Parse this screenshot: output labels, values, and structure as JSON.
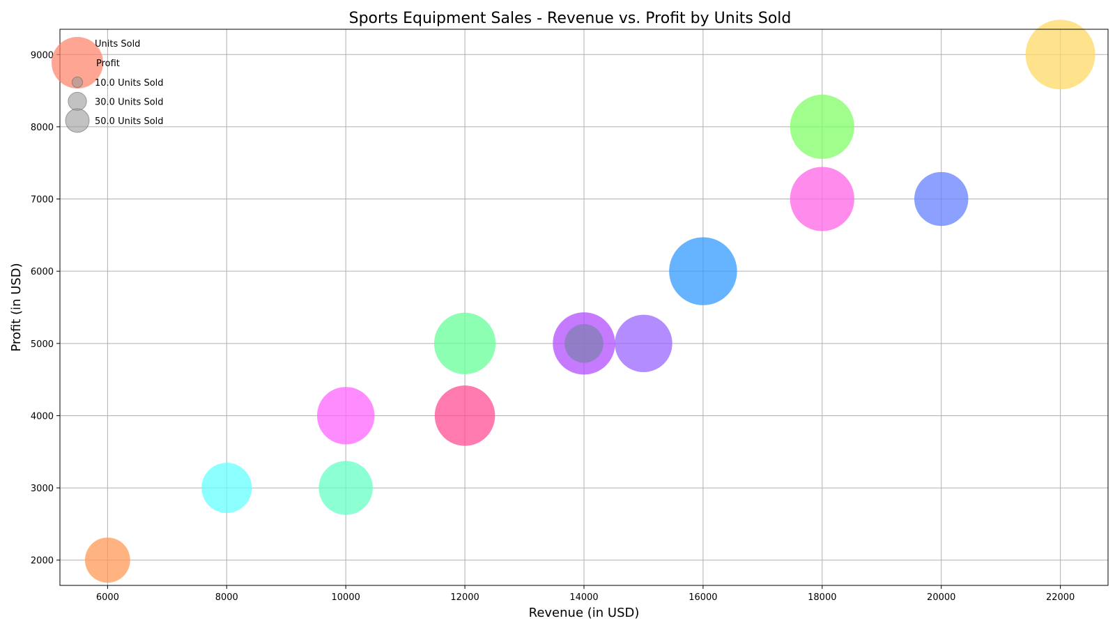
{
  "chart_data": {
    "type": "scatter",
    "title": "Sports Equipment Sales - Revenue vs. Profit by Units Sold",
    "xlabel": "Revenue (in USD)",
    "ylabel": "Profit (in USD)",
    "xlim": [
      5200,
      22800
    ],
    "ylim": [
      1650,
      9350
    ],
    "xticks": [
      6000,
      8000,
      10000,
      12000,
      14000,
      16000,
      18000,
      20000,
      22000
    ],
    "yticks": [
      2000,
      3000,
      4000,
      5000,
      6000,
      7000,
      8000,
      9000
    ],
    "grid": true,
    "points": [
      {
        "x": 22000,
        "y": 9000,
        "size": 100,
        "color": "#ffd966"
      },
      {
        "x": 18000,
        "y": 8000,
        "size": 85,
        "color": "#80ff66"
      },
      {
        "x": 18000,
        "y": 7000,
        "size": 85,
        "color": "#ff66e6"
      },
      {
        "x": 20000,
        "y": 7000,
        "size": 60,
        "color": "#6680ff"
      },
      {
        "x": 16000,
        "y": 6000,
        "size": 95,
        "color": "#3399ff"
      },
      {
        "x": 12000,
        "y": 5000,
        "size": 78,
        "color": "#66ff99"
      },
      {
        "x": 14000,
        "y": 5000,
        "size": 80,
        "color": "#b34dff"
      },
      {
        "x": 14000,
        "y": 5000,
        "size": 31,
        "color": "#8080b3"
      },
      {
        "x": 15000,
        "y": 5000,
        "size": 68,
        "color": "#9966ff"
      },
      {
        "x": 10000,
        "y": 4000,
        "size": 68,
        "color": "#ff66ff"
      },
      {
        "x": 12000,
        "y": 4000,
        "size": 75,
        "color": "#ff4d94"
      },
      {
        "x": 10000,
        "y": 3000,
        "size": 60,
        "color": "#66ffc4"
      },
      {
        "x": 8000,
        "y": 3000,
        "size": 52,
        "color": "#66ffff"
      },
      {
        "x": 6000,
        "y": 2000,
        "size": 42,
        "color": "#ff9955"
      }
    ],
    "legend": {
      "placement": "top-left",
      "title": "Units Sold",
      "title_marker_color": "#ff7f66",
      "series_label": "Profit",
      "size_entries": [
        {
          "label": "10.0 Units Sold",
          "units": 10
        },
        {
          "label": "30.0 Units Sold",
          "units": 30
        },
        {
          "label": "50.0 Units Sold",
          "units": 50
        }
      ]
    }
  }
}
